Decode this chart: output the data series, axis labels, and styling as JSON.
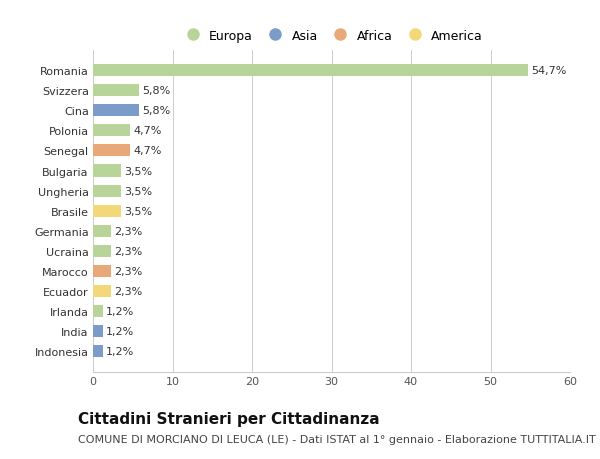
{
  "categories": [
    "Indonesia",
    "India",
    "Irlanda",
    "Ecuador",
    "Marocco",
    "Ucraina",
    "Germania",
    "Brasile",
    "Ungheria",
    "Bulgaria",
    "Senegal",
    "Polonia",
    "Cina",
    "Svizzera",
    "Romania"
  ],
  "values": [
    1.2,
    1.2,
    1.2,
    2.3,
    2.3,
    2.3,
    2.3,
    3.5,
    3.5,
    3.5,
    4.7,
    4.7,
    5.8,
    5.8,
    54.7
  ],
  "labels": [
    "1,2%",
    "1,2%",
    "1,2%",
    "2,3%",
    "2,3%",
    "2,3%",
    "2,3%",
    "3,5%",
    "3,5%",
    "3,5%",
    "4,7%",
    "4,7%",
    "5,8%",
    "5,8%",
    "54,7%"
  ],
  "colors": [
    "#7b9cc8",
    "#7b9cc8",
    "#b8d498",
    "#f2d878",
    "#e8a878",
    "#b8d498",
    "#b8d498",
    "#f2d878",
    "#b8d498",
    "#b8d498",
    "#e8a878",
    "#b8d498",
    "#7b9cc8",
    "#b8d498",
    "#b8d498"
  ],
  "legend_labels": [
    "Europa",
    "Asia",
    "Africa",
    "America"
  ],
  "legend_colors": [
    "#b8d498",
    "#7b9cc8",
    "#e8a878",
    "#f2d878"
  ],
  "title": "Cittadini Stranieri per Cittadinanza",
  "subtitle": "COMUNE DI MORCIANO DI LEUCA (LE) - Dati ISTAT al 1° gennaio - Elaborazione TUTTITALIA.IT",
  "xlim": [
    0,
    60
  ],
  "xticks": [
    0,
    10,
    20,
    30,
    40,
    50,
    60
  ],
  "background_color": "#ffffff",
  "bar_height": 0.6,
  "grid_color": "#cccccc",
  "title_fontsize": 11,
  "subtitle_fontsize": 8,
  "label_fontsize": 8,
  "tick_fontsize": 8,
  "legend_fontsize": 9
}
